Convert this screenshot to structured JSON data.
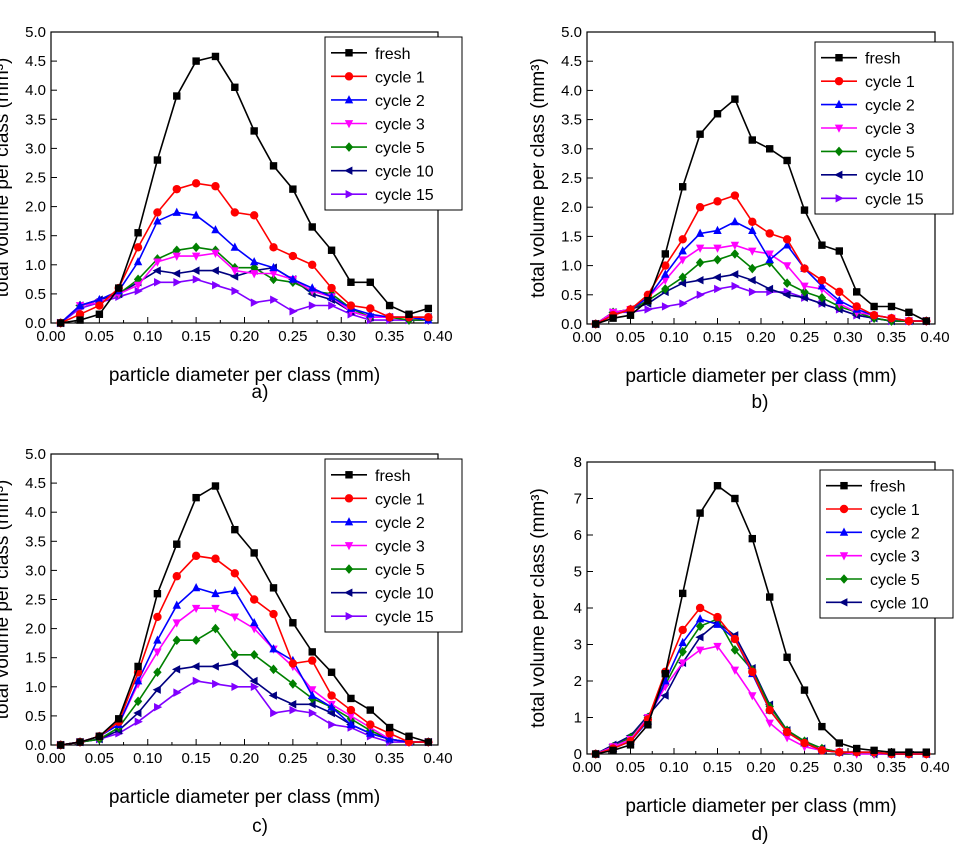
{
  "figure": {
    "background": "#ffffff"
  },
  "series_styles": {
    "fresh": {
      "color": "#000000",
      "marker": "square"
    },
    "cycle 1": {
      "color": "#ff0000",
      "marker": "circle"
    },
    "cycle 2": {
      "color": "#0000ff",
      "marker": "triangle-up"
    },
    "cycle 3": {
      "color": "#ff00ff",
      "marker": "triangle-down"
    },
    "cycle 5": {
      "color": "#008000",
      "marker": "diamond"
    },
    "cycle 10": {
      "color": "#000080",
      "marker": "triangle-left"
    },
    "cycle 15": {
      "color": "#8000ff",
      "marker": "triangle-right"
    }
  },
  "chart_data": [
    {
      "type": "line",
      "panel_label": "a)",
      "xlabel": "particle diameter per class (mm)",
      "ylabel": "total volume per class (mm³)",
      "xlim": [
        0,
        0.4
      ],
      "ylim": [
        0,
        5
      ],
      "xticks": [
        "0.00",
        "0.05",
        "0.10",
        "0.15",
        "0.20",
        "0.25",
        "0.30",
        "0.35",
        "0.40"
      ],
      "yticks": [
        "0.0",
        "0.5",
        "1.0",
        "1.5",
        "2.0",
        "2.5",
        "3.0",
        "3.5",
        "4.0",
        "4.5",
        "5.0"
      ],
      "legend_position": "top-right",
      "x": [
        0.01,
        0.03,
        0.05,
        0.07,
        0.09,
        0.11,
        0.13,
        0.15,
        0.17,
        0.19,
        0.21,
        0.23,
        0.25,
        0.27,
        0.29,
        0.31,
        0.33,
        0.35,
        0.37,
        0.39
      ],
      "series": [
        {
          "name": "fresh",
          "values": [
            0.0,
            0.05,
            0.15,
            0.6,
            1.55,
            2.8,
            3.9,
            4.5,
            4.58,
            4.05,
            3.3,
            2.7,
            2.3,
            1.65,
            1.25,
            0.7,
            0.7,
            0.3,
            0.15,
            0.25
          ]
        },
        {
          "name": "cycle 1",
          "values": [
            0.0,
            0.15,
            0.3,
            0.6,
            1.3,
            1.9,
            2.3,
            2.4,
            2.35,
            1.9,
            1.85,
            1.3,
            1.15,
            1.0,
            0.6,
            0.3,
            0.25,
            0.1,
            0.1,
            0.1
          ]
        },
        {
          "name": "cycle 2",
          "values": [
            0.0,
            0.3,
            0.4,
            0.55,
            1.05,
            1.75,
            1.9,
            1.85,
            1.6,
            1.3,
            1.05,
            0.95,
            0.75,
            0.6,
            0.45,
            0.25,
            0.15,
            0.1,
            0.1,
            0.05
          ]
        },
        {
          "name": "cycle 3",
          "values": [
            0.0,
            0.3,
            0.35,
            0.5,
            0.65,
            1.05,
            1.15,
            1.15,
            1.2,
            0.9,
            0.85,
            0.85,
            0.75,
            0.55,
            0.45,
            0.2,
            0.1,
            0.1,
            0.1,
            0.05
          ]
        },
        {
          "name": "cycle 5",
          "values": [
            0.0,
            0.3,
            0.35,
            0.5,
            0.75,
            1.1,
            1.25,
            1.3,
            1.25,
            0.95,
            0.95,
            0.75,
            0.7,
            0.55,
            0.5,
            0.25,
            0.1,
            0.1,
            0.05,
            0.05
          ]
        },
        {
          "name": "cycle 10",
          "values": [
            0.0,
            0.3,
            0.4,
            0.5,
            0.7,
            0.9,
            0.85,
            0.9,
            0.9,
            0.8,
            0.9,
            0.95,
            0.75,
            0.5,
            0.4,
            0.2,
            0.1,
            0.1,
            0.1,
            0.1
          ]
        },
        {
          "name": "cycle 15",
          "values": [
            0.0,
            0.25,
            0.35,
            0.45,
            0.55,
            0.7,
            0.7,
            0.75,
            0.65,
            0.55,
            0.35,
            0.4,
            0.2,
            0.3,
            0.3,
            0.15,
            0.05,
            0.05,
            0.05,
            0.05
          ]
        }
      ]
    },
    {
      "type": "line",
      "panel_label": "b)",
      "xlabel": "particle diameter per class (mm)",
      "ylabel": "total volume per class (mm³)",
      "xlim": [
        0,
        0.4
      ],
      "ylim": [
        0,
        5
      ],
      "xticks": [
        "0.00",
        "0.05",
        "0.10",
        "0.15",
        "0.20",
        "0.25",
        "0.30",
        "0.35",
        "0.40"
      ],
      "yticks": [
        "0.0",
        "0.5",
        "1.0",
        "1.5",
        "2.0",
        "2.5",
        "3.0",
        "3.5",
        "4.0",
        "4.5",
        "5.0"
      ],
      "legend_position": "top-right",
      "x": [
        0.01,
        0.03,
        0.05,
        0.07,
        0.09,
        0.11,
        0.13,
        0.15,
        0.17,
        0.19,
        0.21,
        0.23,
        0.25,
        0.27,
        0.29,
        0.31,
        0.33,
        0.35,
        0.37,
        0.39
      ],
      "series": [
        {
          "name": "fresh",
          "values": [
            0.0,
            0.1,
            0.15,
            0.4,
            1.2,
            2.35,
            3.25,
            3.6,
            3.85,
            3.15,
            3.0,
            2.8,
            1.95,
            1.35,
            1.25,
            0.55,
            0.3,
            0.3,
            0.2,
            0.05
          ]
        },
        {
          "name": "cycle 1",
          "values": [
            0.0,
            0.15,
            0.25,
            0.5,
            1.0,
            1.45,
            2.0,
            2.1,
            2.2,
            1.75,
            1.55,
            1.45,
            0.95,
            0.75,
            0.55,
            0.3,
            0.15,
            0.1,
            0.05,
            0.05
          ]
        },
        {
          "name": "cycle 2",
          "values": [
            0.0,
            0.15,
            0.25,
            0.45,
            0.85,
            1.25,
            1.55,
            1.6,
            1.75,
            1.6,
            1.1,
            1.35,
            0.95,
            0.65,
            0.4,
            0.25,
            0.15,
            0.1,
            0.05,
            0.05
          ]
        },
        {
          "name": "cycle 3",
          "values": [
            0.0,
            0.2,
            0.25,
            0.45,
            0.75,
            1.1,
            1.3,
            1.3,
            1.35,
            1.25,
            1.2,
            1.0,
            0.65,
            0.6,
            0.35,
            0.2,
            0.15,
            0.1,
            0.05,
            0.05
          ]
        },
        {
          "name": "cycle 5",
          "values": [
            0.0,
            0.2,
            0.25,
            0.4,
            0.6,
            0.8,
            1.05,
            1.1,
            1.2,
            0.95,
            1.05,
            0.7,
            0.55,
            0.45,
            0.3,
            0.2,
            0.1,
            0.05,
            0.05,
            0.05
          ]
        },
        {
          "name": "cycle 10",
          "values": [
            0.0,
            0.2,
            0.25,
            0.35,
            0.55,
            0.7,
            0.75,
            0.8,
            0.85,
            0.75,
            0.6,
            0.5,
            0.45,
            0.35,
            0.25,
            0.15,
            0.1,
            0.05,
            0.05,
            0.05
          ]
        },
        {
          "name": "cycle 15",
          "values": [
            0.0,
            0.2,
            0.2,
            0.25,
            0.3,
            0.35,
            0.5,
            0.6,
            0.65,
            0.55,
            0.55,
            0.55,
            0.45,
            0.35,
            0.25,
            0.15,
            0.1,
            0.05,
            0.05,
            0.05
          ]
        }
      ]
    },
    {
      "type": "line",
      "panel_label": "c)",
      "xlabel": "particle diameter per class (mm)",
      "ylabel": "total volume per class (mm³)",
      "xlim": [
        0,
        0.4
      ],
      "ylim": [
        0,
        5
      ],
      "xticks": [
        "0.00",
        "0.05",
        "0.10",
        "0.15",
        "0.20",
        "0.25",
        "0.30",
        "0.35",
        "0.40"
      ],
      "yticks": [
        "0.0",
        "0.5",
        "1.0",
        "1.5",
        "2.0",
        "2.5",
        "3.0",
        "3.5",
        "4.0",
        "4.5",
        "5.0"
      ],
      "legend_position": "top-right",
      "x": [
        0.01,
        0.03,
        0.05,
        0.07,
        0.09,
        0.11,
        0.13,
        0.15,
        0.17,
        0.19,
        0.21,
        0.23,
        0.25,
        0.27,
        0.29,
        0.31,
        0.33,
        0.35,
        0.37,
        0.39
      ],
      "series": [
        {
          "name": "fresh",
          "values": [
            0.0,
            0.05,
            0.15,
            0.45,
            1.35,
            2.6,
            3.45,
            4.25,
            4.45,
            3.7,
            3.3,
            2.7,
            2.1,
            1.6,
            1.25,
            0.8,
            0.6,
            0.3,
            0.15,
            0.05
          ]
        },
        {
          "name": "cycle 1",
          "values": [
            0.0,
            0.05,
            0.15,
            0.4,
            1.25,
            2.2,
            2.9,
            3.25,
            3.2,
            2.95,
            2.5,
            2.25,
            1.4,
            1.45,
            0.85,
            0.6,
            0.35,
            0.2,
            0.05,
            0.05
          ]
        },
        {
          "name": "cycle 2",
          "values": [
            0.0,
            0.05,
            0.15,
            0.35,
            1.1,
            1.8,
            2.4,
            2.7,
            2.6,
            2.65,
            2.1,
            1.65,
            1.45,
            0.85,
            0.65,
            0.35,
            0.2,
            0.1,
            0.05,
            0.05
          ]
        },
        {
          "name": "cycle 3",
          "values": [
            0.0,
            0.05,
            0.15,
            0.35,
            1.05,
            1.6,
            2.1,
            2.35,
            2.35,
            2.2,
            2.0,
            1.65,
            1.35,
            0.95,
            0.7,
            0.5,
            0.3,
            0.1,
            0.05,
            0.05
          ]
        },
        {
          "name": "cycle 5",
          "values": [
            0.0,
            0.05,
            0.1,
            0.3,
            0.75,
            1.25,
            1.8,
            1.8,
            2.0,
            1.55,
            1.55,
            1.3,
            1.05,
            0.8,
            0.65,
            0.45,
            0.25,
            0.1,
            0.05,
            0.05
          ]
        },
        {
          "name": "cycle 10",
          "values": [
            0.0,
            0.05,
            0.1,
            0.25,
            0.55,
            0.95,
            1.3,
            1.35,
            1.35,
            1.4,
            1.1,
            0.85,
            0.7,
            0.7,
            0.55,
            0.35,
            0.2,
            0.1,
            0.05,
            0.05
          ]
        },
        {
          "name": "cycle 15",
          "values": [
            0.0,
            0.05,
            0.1,
            0.2,
            0.4,
            0.65,
            0.9,
            1.1,
            1.05,
            1.0,
            1.0,
            0.55,
            0.6,
            0.55,
            0.35,
            0.3,
            0.15,
            0.05,
            0.05,
            0.05
          ]
        }
      ]
    },
    {
      "type": "line",
      "panel_label": "d)",
      "xlabel": "particle diameter per class (mm)",
      "ylabel": "total volume per class (mm³)",
      "xlim": [
        0,
        0.4
      ],
      "ylim": [
        0,
        8
      ],
      "xticks": [
        "0.00",
        "0.05",
        "0.10",
        "0.15",
        "0.20",
        "0.25",
        "0.30",
        "0.35",
        "0.40"
      ],
      "yticks": [
        "0",
        "1",
        "2",
        "3",
        "4",
        "5",
        "6",
        "7",
        "8"
      ],
      "legend_position": "top-right",
      "x": [
        0.01,
        0.03,
        0.05,
        0.07,
        0.09,
        0.11,
        0.13,
        0.15,
        0.17,
        0.19,
        0.21,
        0.23,
        0.25,
        0.27,
        0.29,
        0.31,
        0.33,
        0.35,
        0.37,
        0.39
      ],
      "series": [
        {
          "name": "fresh",
          "values": [
            0.0,
            0.1,
            0.25,
            0.8,
            2.2,
            4.4,
            6.6,
            7.35,
            7.0,
            5.9,
            4.3,
            2.65,
            1.75,
            0.75,
            0.3,
            0.15,
            0.1,
            0.05,
            0.05,
            0.05
          ]
        },
        {
          "name": "cycle 1",
          "values": [
            0.0,
            0.15,
            0.35,
            0.95,
            2.25,
            3.4,
            4.0,
            3.75,
            3.15,
            2.25,
            1.2,
            0.6,
            0.3,
            0.1,
            0.05,
            0.05,
            0.05,
            0.0,
            0.0,
            0.0
          ]
        },
        {
          "name": "cycle 2",
          "values": [
            0.0,
            0.15,
            0.35,
            0.9,
            2.0,
            3.05,
            3.7,
            3.55,
            3.15,
            2.2,
            1.2,
            0.6,
            0.3,
            0.1,
            0.05,
            0.05,
            0.05,
            0.0,
            0.0,
            0.0
          ]
        },
        {
          "name": "cycle 3",
          "values": [
            0.0,
            0.2,
            0.4,
            1.0,
            1.85,
            2.5,
            2.85,
            2.95,
            2.3,
            1.6,
            0.85,
            0.45,
            0.2,
            0.1,
            0.05,
            0.0,
            0.0,
            0.0,
            0.0,
            0.0
          ]
        },
        {
          "name": "cycle 5",
          "values": [
            0.0,
            0.2,
            0.45,
            1.0,
            1.9,
            2.8,
            3.5,
            3.7,
            2.85,
            2.3,
            1.3,
            0.65,
            0.35,
            0.15,
            0.05,
            0.05,
            0.0,
            0.0,
            0.0,
            0.0
          ]
        },
        {
          "name": "cycle 10",
          "values": [
            0.0,
            0.25,
            0.5,
            1.05,
            1.6,
            2.5,
            3.2,
            3.6,
            3.25,
            2.35,
            1.35,
            0.65,
            0.35,
            0.15,
            0.05,
            0.05,
            0.0,
            0.0,
            0.0,
            0.0
          ]
        }
      ]
    }
  ]
}
